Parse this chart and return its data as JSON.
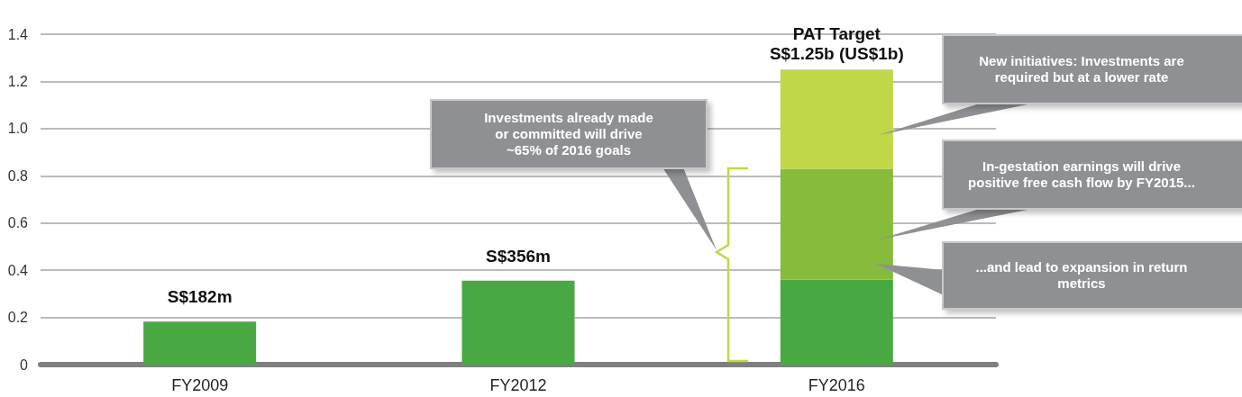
{
  "chart_data": {
    "type": "bar",
    "categories": [
      "FY2009",
      "FY2012",
      "FY2016"
    ],
    "series": [
      {
        "color": "#48a842",
        "values": [
          0.182,
          0.356,
          0.36
        ],
        "value_labels": [
          "S$182m",
          "S$356m",
          null
        ]
      },
      {
        "color": "#86bb3c",
        "values": [
          null,
          null,
          0.47
        ]
      },
      {
        "color": "#c0d747",
        "values": [
          null,
          null,
          0.42
        ]
      }
    ],
    "stacked": true,
    "ylim": [
      0,
      1.4
    ],
    "yticks": [
      0,
      0.2,
      0.4,
      0.6,
      0.8,
      {
        "value": 1,
        "label": "1.0"
      },
      1.2,
      1.4
    ],
    "grid": "y",
    "totals": [
      null,
      null,
      "S$1.25b (US$1b)"
    ],
    "annotations": [
      {
        "text": "PAT Target",
        "x": "FY2016",
        "y": 1.25
      },
      "Investments already made or committed will drive ~65% of 2016 goals",
      "New initiatives: Investments are required but at a lower rate",
      "In-gestation earnings will drive positive free cash flow by FY2015...",
      "...and lead to expansion in return metrics"
    ]
  }
}
